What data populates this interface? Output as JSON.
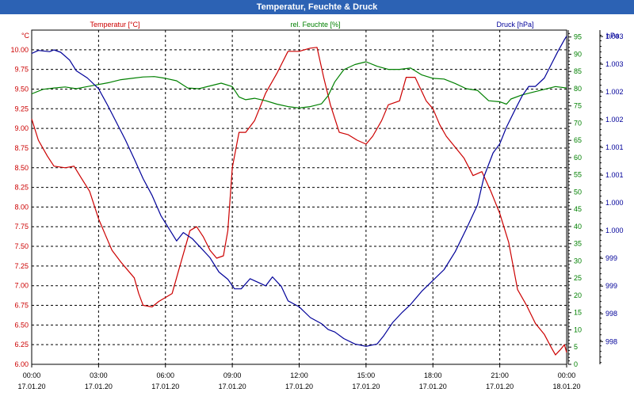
{
  "window": {
    "title": "Temperatur, Feuchte & Druck"
  },
  "chart_data": {
    "type": "line",
    "title": "Temperatur, Feuchte & Druck",
    "x_ticks": [
      {
        "time": "00:00",
        "date": "17.01.20"
      },
      {
        "time": "03:00",
        "date": "17.01.20"
      },
      {
        "time": "06:00",
        "date": "17.01.20"
      },
      {
        "time": "09:00",
        "date": "17.01.20"
      },
      {
        "time": "12:00",
        "date": "17.01.20"
      },
      {
        "time": "15:00",
        "date": "17.01.20"
      },
      {
        "time": "18:00",
        "date": "17.01.20"
      },
      {
        "time": "21:00",
        "date": "17.01.20"
      },
      {
        "time": "00:00",
        "date": "18.01.20"
      }
    ],
    "x_range_hours": [
      0,
      24
    ],
    "grid": true,
    "axes": {
      "temperature": {
        "label": "Temperatur [°C]",
        "unit": "°C",
        "color": "#cc0000",
        "ylim": [
          6.0,
          10.25
        ],
        "ticks": [
          "6.00",
          "6.25",
          "6.50",
          "6.75",
          "7.00",
          "7.25",
          "7.50",
          "7.75",
          "8.00",
          "8.25",
          "8.50",
          "8.75",
          "9.00",
          "9.25",
          "9.50",
          "9.75",
          "10.00"
        ]
      },
      "humidity": {
        "label": "rel. Feuchte [%]",
        "unit": "%",
        "color": "#008000",
        "ylim": [
          0,
          97
        ],
        "ticks": [
          "0",
          "5",
          "10",
          "15",
          "20",
          "25",
          "30",
          "35",
          "40",
          "45",
          "50",
          "55",
          "60",
          "65",
          "70",
          "75",
          "80",
          "85",
          "90",
          "95"
        ]
      },
      "pressure": {
        "label": "Druck [hPa]",
        "unit": "hPa",
        "color": "#000099",
        "ylim": [
          997.62,
          1003.2
        ],
        "ticks": [
          "998",
          "998",
          "999",
          "999",
          "1.000",
          "1.000",
          "1.001",
          "1.001",
          "1.002",
          "1.002",
          "1.003",
          "1.003"
        ]
      }
    },
    "series": [
      {
        "name": "Temperatur [°C]",
        "axis": "temperature",
        "color": "#cc0000",
        "points": [
          [
            0.0,
            9.12
          ],
          [
            0.3,
            8.85
          ],
          [
            0.7,
            8.65
          ],
          [
            1.0,
            8.52
          ],
          [
            1.5,
            8.5
          ],
          [
            1.9,
            8.52
          ],
          [
            2.2,
            8.38
          ],
          [
            2.6,
            8.2
          ],
          [
            3.0,
            7.85
          ],
          [
            3.3,
            7.65
          ],
          [
            3.6,
            7.45
          ],
          [
            4.0,
            7.3
          ],
          [
            4.3,
            7.2
          ],
          [
            4.6,
            7.1
          ],
          [
            4.8,
            6.9
          ],
          [
            5.0,
            6.75
          ],
          [
            5.4,
            6.73
          ],
          [
            5.7,
            6.8
          ],
          [
            6.0,
            6.85
          ],
          [
            6.3,
            6.9
          ],
          [
            6.6,
            7.2
          ],
          [
            6.9,
            7.5
          ],
          [
            7.1,
            7.7
          ],
          [
            7.4,
            7.75
          ],
          [
            7.7,
            7.62
          ],
          [
            8.0,
            7.45
          ],
          [
            8.3,
            7.35
          ],
          [
            8.6,
            7.38
          ],
          [
            8.8,
            7.7
          ],
          [
            9.0,
            8.5
          ],
          [
            9.3,
            8.95
          ],
          [
            9.6,
            8.95
          ],
          [
            10.0,
            9.1
          ],
          [
            10.5,
            9.45
          ],
          [
            11.0,
            9.7
          ],
          [
            11.5,
            9.98
          ],
          [
            12.0,
            9.98
          ],
          [
            12.5,
            10.02
          ],
          [
            12.8,
            10.03
          ],
          [
            13.1,
            9.65
          ],
          [
            13.4,
            9.3
          ],
          [
            13.8,
            8.95
          ],
          [
            14.2,
            8.92
          ],
          [
            14.6,
            8.85
          ],
          [
            15.0,
            8.8
          ],
          [
            15.3,
            8.9
          ],
          [
            15.7,
            9.1
          ],
          [
            16.0,
            9.3
          ],
          [
            16.5,
            9.35
          ],
          [
            16.8,
            9.65
          ],
          [
            17.2,
            9.65
          ],
          [
            17.7,
            9.35
          ],
          [
            18.0,
            9.25
          ],
          [
            18.3,
            9.05
          ],
          [
            18.6,
            8.9
          ],
          [
            19.0,
            8.76
          ],
          [
            19.4,
            8.62
          ],
          [
            19.8,
            8.4
          ],
          [
            20.2,
            8.45
          ],
          [
            20.6,
            8.2
          ],
          [
            21.0,
            7.92
          ],
          [
            21.4,
            7.55
          ],
          [
            21.8,
            6.95
          ],
          [
            22.2,
            6.75
          ],
          [
            22.6,
            6.52
          ],
          [
            23.0,
            6.38
          ],
          [
            23.3,
            6.22
          ],
          [
            23.5,
            6.12
          ],
          [
            23.7,
            6.18
          ],
          [
            23.9,
            6.25
          ],
          [
            24.0,
            6.15
          ]
        ]
      },
      {
        "name": "rel. Feuchte [%]",
        "axis": "humidity",
        "color": "#008000",
        "points": [
          [
            0.0,
            78.5
          ],
          [
            0.5,
            79.8
          ],
          [
            1.0,
            80.2
          ],
          [
            1.5,
            80.5
          ],
          [
            2.0,
            80.0
          ],
          [
            2.5,
            80.6
          ],
          [
            3.0,
            81.2
          ],
          [
            3.5,
            81.8
          ],
          [
            4.0,
            82.6
          ],
          [
            4.5,
            83.0
          ],
          [
            5.0,
            83.4
          ],
          [
            5.5,
            83.5
          ],
          [
            6.0,
            83.0
          ],
          [
            6.5,
            82.3
          ],
          [
            7.0,
            80.2
          ],
          [
            7.5,
            80.0
          ],
          [
            8.0,
            80.8
          ],
          [
            8.5,
            81.6
          ],
          [
            9.0,
            80.6
          ],
          [
            9.3,
            77.6
          ],
          [
            9.6,
            76.8
          ],
          [
            10.0,
            77.2
          ],
          [
            10.5,
            76.5
          ],
          [
            11.0,
            75.5
          ],
          [
            11.5,
            74.8
          ],
          [
            12.0,
            74.4
          ],
          [
            12.5,
            74.8
          ],
          [
            13.0,
            75.6
          ],
          [
            13.3,
            78.0
          ],
          [
            13.6,
            82.0
          ],
          [
            14.0,
            85.5
          ],
          [
            14.5,
            87.0
          ],
          [
            15.0,
            87.8
          ],
          [
            15.5,
            86.5
          ],
          [
            16.0,
            85.6
          ],
          [
            16.5,
            85.6
          ],
          [
            17.0,
            86.0
          ],
          [
            17.5,
            84.0
          ],
          [
            18.0,
            83.0
          ],
          [
            18.5,
            82.8
          ],
          [
            19.0,
            81.5
          ],
          [
            19.5,
            80.0
          ],
          [
            20.0,
            79.5
          ],
          [
            20.5,
            76.5
          ],
          [
            21.0,
            76.2
          ],
          [
            21.3,
            75.5
          ],
          [
            21.5,
            77.0
          ],
          [
            22.0,
            78.2
          ],
          [
            22.5,
            79.0
          ],
          [
            23.0,
            79.8
          ],
          [
            23.5,
            80.6
          ],
          [
            24.0,
            80.2
          ]
        ]
      },
      {
        "name": "Druck [hPa]",
        "axis": "pressure",
        "color": "#000099",
        "points": [
          [
            0.0,
            1002.81
          ],
          [
            0.3,
            1002.86
          ],
          [
            0.8,
            1002.84
          ],
          [
            1.0,
            1002.87
          ],
          [
            1.3,
            1002.83
          ],
          [
            1.7,
            1002.7
          ],
          [
            2.0,
            1002.52
          ],
          [
            2.5,
            1002.4
          ],
          [
            3.0,
            1002.22
          ],
          [
            3.4,
            1001.95
          ],
          [
            3.8,
            1001.66
          ],
          [
            4.2,
            1001.37
          ],
          [
            4.6,
            1001.05
          ],
          [
            5.0,
            1000.72
          ],
          [
            5.4,
            1000.44
          ],
          [
            5.8,
            1000.1
          ],
          [
            6.2,
            999.86
          ],
          [
            6.5,
            999.68
          ],
          [
            6.8,
            999.82
          ],
          [
            7.2,
            999.72
          ],
          [
            7.6,
            999.56
          ],
          [
            8.0,
            999.4
          ],
          [
            8.4,
            999.16
          ],
          [
            8.8,
            999.04
          ],
          [
            9.1,
            998.88
          ],
          [
            9.4,
            998.88
          ],
          [
            9.8,
            999.05
          ],
          [
            10.2,
            998.98
          ],
          [
            10.5,
            998.93
          ],
          [
            10.8,
            999.08
          ],
          [
            11.2,
            998.92
          ],
          [
            11.5,
            998.68
          ],
          [
            12.0,
            998.58
          ],
          [
            12.5,
            998.4
          ],
          [
            13.0,
            998.3
          ],
          [
            13.3,
            998.2
          ],
          [
            13.6,
            998.16
          ],
          [
            14.0,
            998.05
          ],
          [
            14.5,
            997.96
          ],
          [
            15.0,
            997.92
          ],
          [
            15.5,
            997.96
          ],
          [
            15.8,
            998.1
          ],
          [
            16.2,
            998.32
          ],
          [
            16.6,
            998.48
          ],
          [
            17.0,
            998.62
          ],
          [
            17.5,
            998.84
          ],
          [
            18.0,
            999.02
          ],
          [
            18.5,
            999.2
          ],
          [
            19.0,
            999.5
          ],
          [
            19.5,
            999.88
          ],
          [
            20.0,
            1000.28
          ],
          [
            20.3,
            1000.76
          ],
          [
            20.7,
            1001.15
          ],
          [
            21.0,
            1001.3
          ],
          [
            21.3,
            1001.58
          ],
          [
            21.7,
            1001.88
          ],
          [
            22.0,
            1002.1
          ],
          [
            22.3,
            1002.26
          ],
          [
            22.6,
            1002.26
          ],
          [
            23.0,
            1002.4
          ],
          [
            23.3,
            1002.62
          ],
          [
            23.6,
            1002.84
          ],
          [
            23.9,
            1003.04
          ],
          [
            24.0,
            1003.1
          ]
        ]
      }
    ]
  }
}
